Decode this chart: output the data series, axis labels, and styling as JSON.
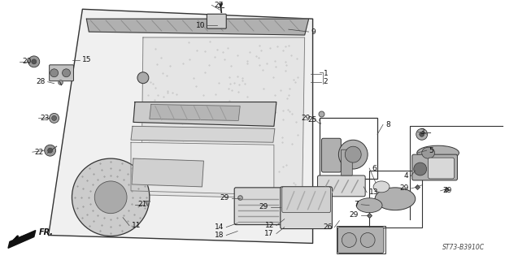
{
  "bg_color": "#ffffff",
  "diagram_code": "ST73-B3910C",
  "fig_width": 6.37,
  "fig_height": 3.2,
  "dpi": 100,
  "label_color": "#111111",
  "line_color": "#333333",
  "part_color": "#555555",
  "fill_light": "#d8d8d8",
  "fill_mid": "#b0b0b0",
  "fill_dark": "#888888"
}
